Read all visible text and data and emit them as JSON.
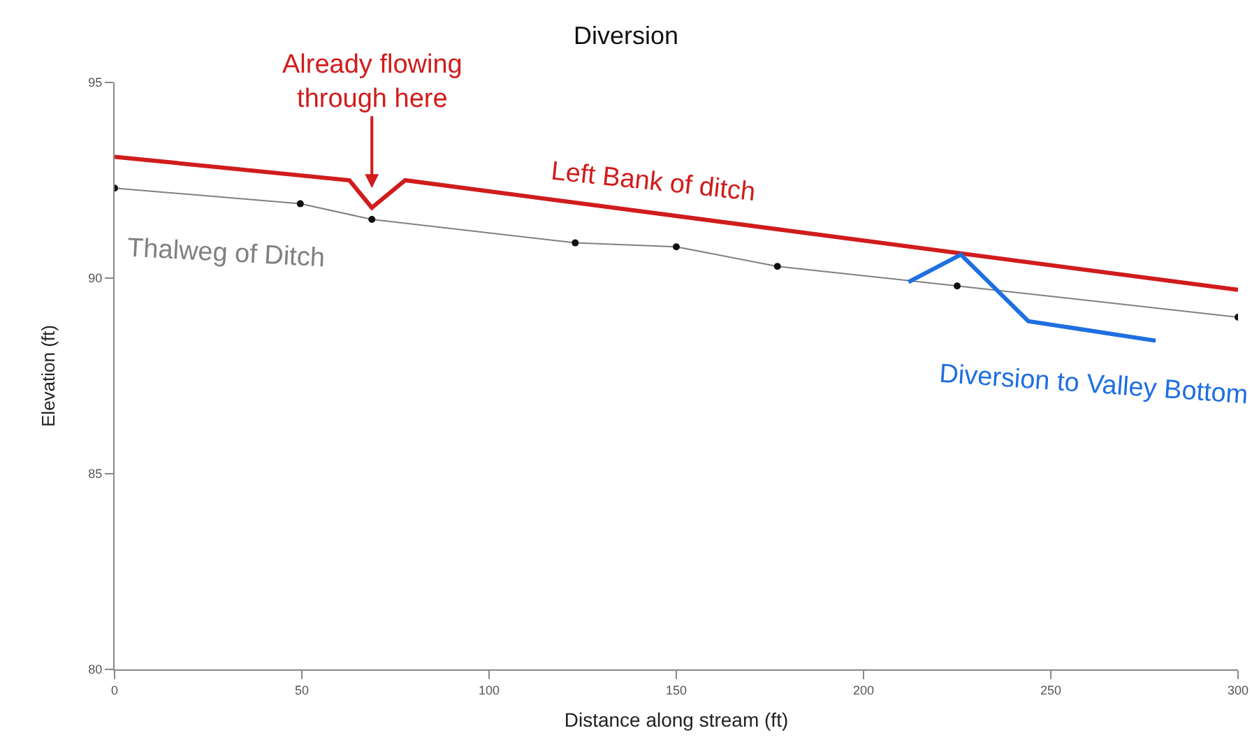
{
  "chart_data": {
    "type": "line",
    "title": "Diversion",
    "xlabel": "Distance along stream (ft)",
    "ylabel": "Elevation (ft)",
    "xlim": [
      0,
      300
    ],
    "xticks": [
      0,
      50,
      100,
      150,
      200,
      250,
      300
    ],
    "ylim": [
      80,
      95
    ],
    "yticks": [
      80,
      85,
      90,
      95
    ],
    "grid": false,
    "legend": false,
    "series": [
      {
        "name": "Left Bank of ditch",
        "color": "#d01c1c",
        "marker": "none",
        "x": [
          0,
          62.7,
          68.7,
          77.6,
          300
        ],
        "values": [
          93.1,
          92.5,
          91.8,
          92.5,
          89.7
        ]
      },
      {
        "name": "Thalweg of Ditch",
        "color": "#808080",
        "marker": "circle",
        "x": [
          0,
          49.6,
          68.7,
          123,
          150,
          177,
          225,
          300
        ],
        "values": [
          92.3,
          91.9,
          91.5,
          90.9,
          90.8,
          90.3,
          89.8,
          89.0
        ]
      },
      {
        "name": "Diversion to Valley Bottom",
        "color": "#1f6fe0",
        "marker": "none",
        "x": [
          212,
          226,
          244,
          278
        ],
        "values": [
          89.9,
          90.6,
          88.9,
          88.4
        ]
      }
    ],
    "annotations": [
      {
        "text": "Already flowing\nthrough here",
        "x": 68.7,
        "y": 91.8
      }
    ]
  }
}
